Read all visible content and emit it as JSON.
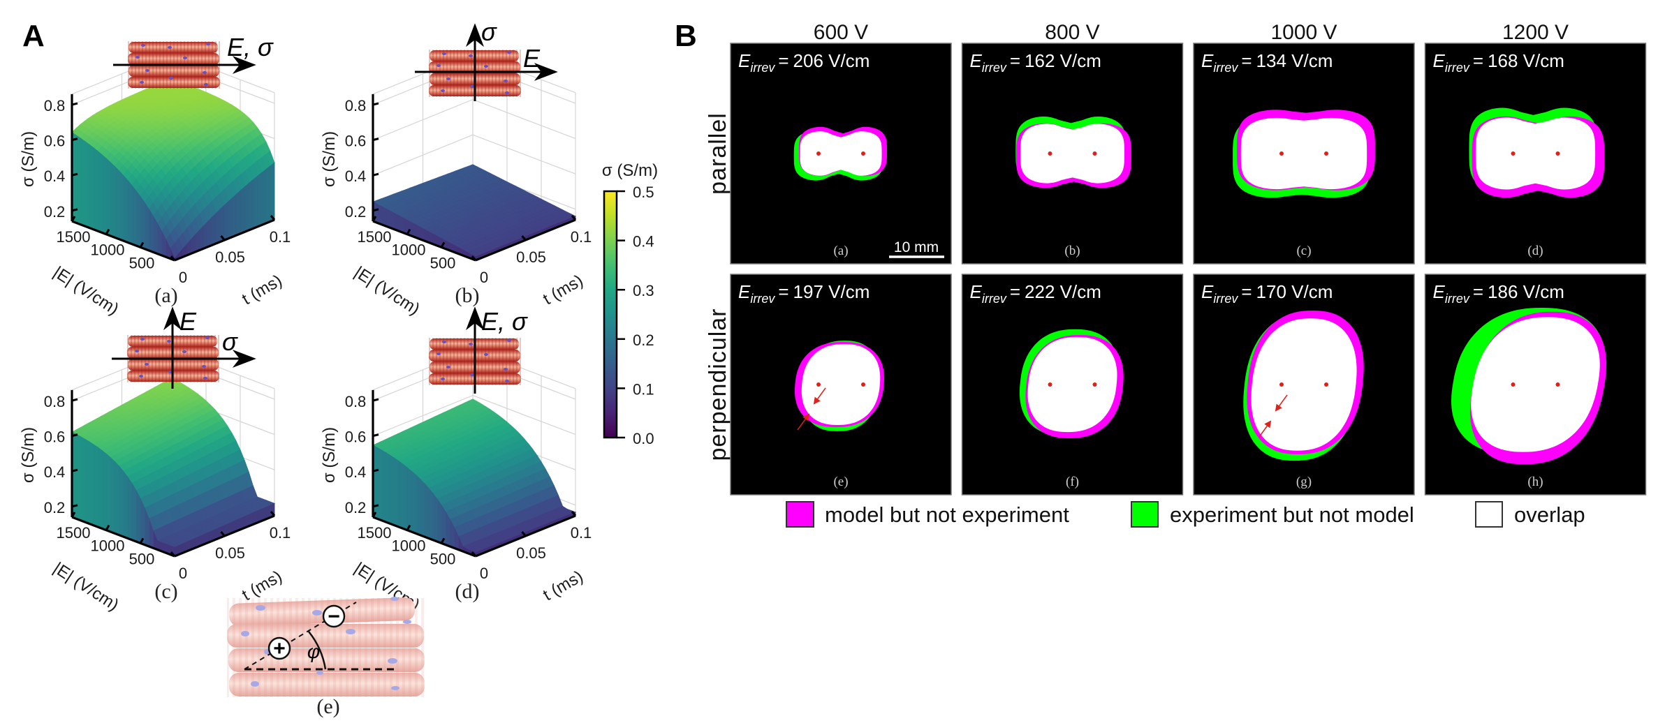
{
  "panel_a": {
    "label": "A",
    "plots": [
      {
        "label": "(a)",
        "field_labels": [
          "E, σ"
        ],
        "zlabel": "σ (S/m)",
        "xlabel": "|E| (V/cm)",
        "ylabel": "t (ms)",
        "z_ticks": [
          "0.2",
          "0.4",
          "0.6",
          "0.8"
        ],
        "e_ticks": [
          "1500",
          "1000",
          "500"
        ],
        "t_ticks": [
          "0",
          "0.05",
          "0.1"
        ]
      },
      {
        "label": "(b)",
        "field_labels": [
          "σ",
          "E"
        ],
        "zlabel": "σ (S/m)",
        "xlabel": "|E| (V/cm)",
        "ylabel": "t (ms)",
        "z_ticks": [
          "0.2",
          "0.4",
          "0.6",
          "0.8"
        ],
        "e_ticks": [
          "1500",
          "1000",
          "500"
        ],
        "t_ticks": [
          "0",
          "0.05",
          "0.1"
        ]
      },
      {
        "label": "(c)",
        "field_labels": [
          "E",
          "σ"
        ],
        "zlabel": "σ (S/m)",
        "xlabel": "|E| (V/cm)",
        "ylabel": "t (ms)",
        "z_ticks": [
          "0.2",
          "0.4",
          "0.6",
          "0.8"
        ],
        "e_ticks": [
          "1500",
          "1000",
          "500"
        ],
        "t_ticks": [
          "0",
          "0.05",
          "0.1"
        ]
      },
      {
        "label": "(d)",
        "field_labels": [
          "E, σ"
        ],
        "zlabel": "σ (S/m)",
        "xlabel": "|E| (V/cm)",
        "ylabel": "t (ms)",
        "z_ticks": [
          "0.2",
          "0.4",
          "0.6",
          "0.8"
        ],
        "e_ticks": [
          "1500",
          "1000",
          "500"
        ],
        "t_ticks": [
          "0",
          "0.05",
          "0.1"
        ]
      }
    ],
    "colorbar": {
      "title": "σ (S/m)",
      "ticks": [
        "0.0",
        "0.1",
        "0.2",
        "0.3",
        "0.4",
        "0.5"
      ],
      "range": [
        0,
        0.5
      ],
      "colormap": "viridis"
    },
    "diagram": {
      "label": "(e)",
      "plus": "+",
      "minus": "−",
      "angle": "φ"
    }
  },
  "panel_b": {
    "label": "B",
    "columns": [
      "600 V",
      "800 V",
      "1000 V",
      "1200 V"
    ],
    "rows": [
      "parallel",
      "perpendicular"
    ],
    "e_symbol": "E",
    "e_sub": "irrev",
    "equals": "=",
    "cells": [
      {
        "label": "(a)",
        "value": "206 V/cm"
      },
      {
        "label": "(b)",
        "value": "162 V/cm"
      },
      {
        "label": "(c)",
        "value": "134 V/cm"
      },
      {
        "label": "(d)",
        "value": "168 V/cm"
      },
      {
        "label": "(e)",
        "value": "197 V/cm"
      },
      {
        "label": "(f)",
        "value": "222 V/cm"
      },
      {
        "label": "(g)",
        "value": "170 V/cm"
      },
      {
        "label": "(h)",
        "value": "186 V/cm"
      }
    ],
    "scale_bar": "10 mm",
    "legend": [
      {
        "label": "model but not experiment",
        "color": "#ff00ff"
      },
      {
        "label": "experiment but not model",
        "color": "#00ff00"
      },
      {
        "label": "overlap",
        "color": "#ffffff"
      }
    ],
    "colors": {
      "background": "#000000",
      "electrode": "#e0201a"
    }
  }
}
